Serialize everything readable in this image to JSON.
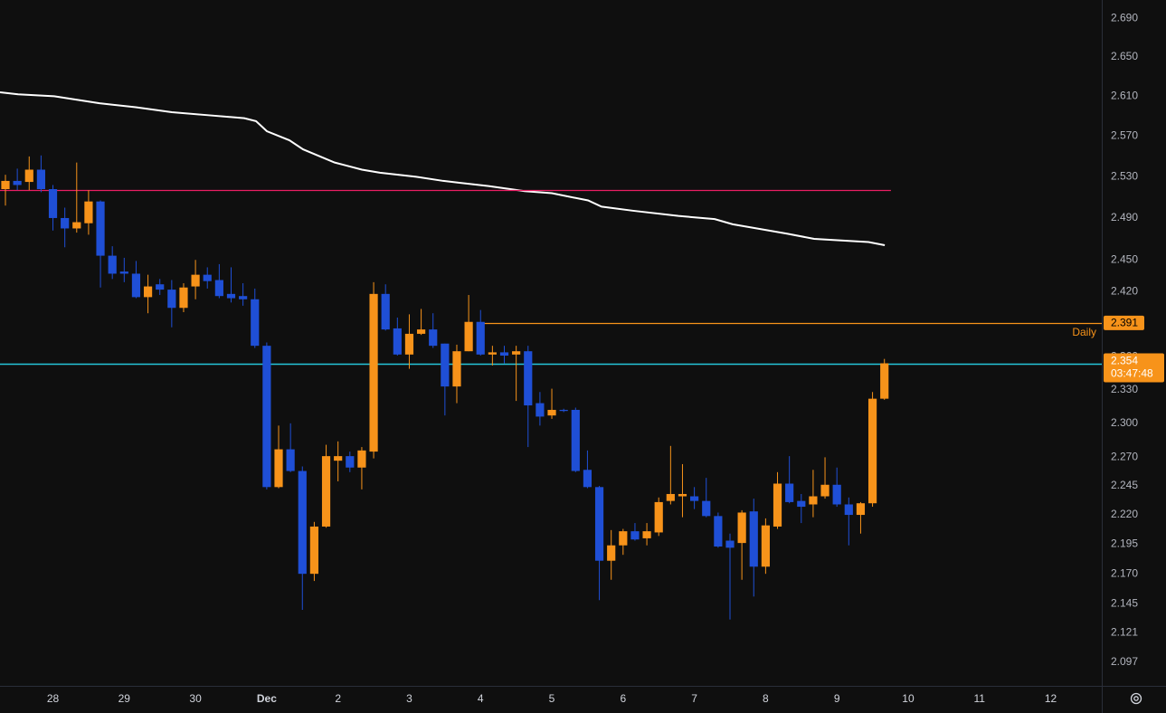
{
  "chart_data": {
    "type": "candlestick",
    "log_scale": true,
    "up_color": "#f7931a",
    "down_color": "#1f4fd6",
    "xlim": [
      -0.457,
      92.3
    ],
    "ylim": [
      2.078,
      2.709
    ],
    "xticks": [
      {
        "value": 4,
        "label": "28"
      },
      {
        "value": 10,
        "label": "29"
      },
      {
        "value": 16,
        "label": "30"
      },
      {
        "value": 22,
        "label": "Dec"
      },
      {
        "value": 28,
        "label": "2"
      },
      {
        "value": 34,
        "label": "3"
      },
      {
        "value": 40,
        "label": "4"
      },
      {
        "value": 46,
        "label": "5"
      },
      {
        "value": 52,
        "label": "6"
      },
      {
        "value": 58,
        "label": "7"
      },
      {
        "value": 64,
        "label": "8"
      },
      {
        "value": 70,
        "label": "9"
      },
      {
        "value": 76,
        "label": "10"
      },
      {
        "value": 82,
        "label": "11"
      },
      {
        "value": 88,
        "label": "12"
      }
    ],
    "yticks": [
      {
        "value": 2.69,
        "label": "2.690"
      },
      {
        "value": 2.65,
        "label": "2.650"
      },
      {
        "value": 2.61,
        "label": "2.610"
      },
      {
        "value": 2.57,
        "label": "2.570"
      },
      {
        "value": 2.53,
        "label": "2.530"
      },
      {
        "value": 2.49,
        "label": "2.490"
      },
      {
        "value": 2.45,
        "label": "2.450"
      },
      {
        "value": 2.42,
        "label": "2.420"
      },
      {
        "value": 2.36,
        "label": "2.360"
      },
      {
        "value": 2.33,
        "label": "2.330"
      },
      {
        "value": 2.3,
        "label": "2.300"
      },
      {
        "value": 2.27,
        "label": "2.270"
      },
      {
        "value": 2.245,
        "label": "2.245"
      },
      {
        "value": 2.22,
        "label": "2.220"
      },
      {
        "value": 2.195,
        "label": "2.195"
      },
      {
        "value": 2.17,
        "label": "2.170"
      },
      {
        "value": 2.145,
        "label": "2.145"
      },
      {
        "value": 2.121,
        "label": "2.121"
      },
      {
        "value": 2.097,
        "label": "2.097"
      }
    ],
    "open": [
      2.518,
      2.526,
      2.525,
      2.537,
      2.518,
      2.49,
      2.48,
      2.485,
      2.506,
      2.454,
      2.439,
      2.437,
      2.415,
      2.427,
      2.422,
      2.405,
      2.425,
      2.436,
      2.431,
      2.418,
      2.416,
      2.413,
      2.37,
      2.244,
      2.277,
      2.258,
      2.17,
      2.21,
      2.267,
      2.271,
      2.261,
      2.275,
      2.418,
      2.386,
      2.362,
      2.381,
      2.385,
      2.372,
      2.333,
      2.365,
      2.392,
      2.362,
      2.364,
      2.362,
      2.365,
      2.318,
      2.307,
      2.312,
      2.312,
      2.259,
      2.244,
      2.181,
      2.194,
      2.206,
      2.2,
      2.205,
      2.232,
      2.236,
      2.236,
      2.232,
      2.219,
      2.198,
      2.196,
      2.223,
      2.176,
      2.21,
      2.247,
      2.232,
      2.229,
      2.236,
      2.246,
      2.229,
      2.22,
      2.23,
      2.322
    ],
    "high": [
      2.532,
      2.538,
      2.55,
      2.551,
      2.522,
      2.5,
      2.544,
      2.517,
      2.507,
      2.463,
      2.452,
      2.449,
      2.436,
      2.432,
      2.431,
      2.428,
      2.45,
      2.443,
      2.446,
      2.443,
      2.428,
      2.423,
      2.373,
      2.298,
      2.3,
      2.262,
      2.214,
      2.281,
      2.284,
      2.275,
      2.279,
      2.429,
      2.427,
      2.396,
      2.399,
      2.404,
      2.4,
      2.372,
      2.371,
      2.417,
      2.403,
      2.37,
      2.37,
      2.37,
      2.37,
      2.328,
      2.331,
      2.313,
      2.314,
      2.276,
      2.245,
      2.207,
      2.208,
      2.213,
      2.213,
      2.235,
      2.28,
      2.264,
      2.244,
      2.252,
      2.222,
      2.204,
      2.224,
      2.234,
      2.217,
      2.257,
      2.271,
      2.238,
      2.259,
      2.27,
      2.261,
      2.235,
      2.231,
      2.328,
      2.358
    ],
    "low": [
      2.502,
      2.517,
      2.517,
      2.515,
      2.478,
      2.462,
      2.476,
      2.474,
      2.424,
      2.432,
      2.429,
      2.414,
      2.4,
      2.417,
      2.387,
      2.401,
      2.413,
      2.423,
      2.414,
      2.41,
      2.407,
      2.368,
      2.242,
      2.243,
      2.257,
      2.14,
      2.164,
      2.209,
      2.249,
      2.257,
      2.242,
      2.269,
      2.384,
      2.361,
      2.349,
      2.38,
      2.368,
      2.307,
      2.318,
      2.365,
      2.361,
      2.352,
      2.354,
      2.32,
      2.279,
      2.298,
      2.304,
      2.31,
      2.257,
      2.243,
      2.148,
      2.165,
      2.186,
      2.198,
      2.194,
      2.202,
      2.229,
      2.218,
      2.225,
      2.218,
      2.192,
      2.132,
      2.165,
      2.151,
      2.17,
      2.208,
      2.23,
      2.213,
      2.218,
      2.234,
      2.227,
      2.194,
      2.204,
      2.227,
      2.321
    ],
    "close": [
      2.526,
      2.522,
      2.537,
      2.518,
      2.49,
      2.48,
      2.486,
      2.506,
      2.454,
      2.437,
      2.437,
      2.415,
      2.425,
      2.422,
      2.405,
      2.424,
      2.436,
      2.43,
      2.416,
      2.414,
      2.413,
      2.37,
      2.244,
      2.277,
      2.258,
      2.17,
      2.21,
      2.271,
      2.271,
      2.261,
      2.276,
      2.418,
      2.385,
      2.362,
      2.381,
      2.385,
      2.37,
      2.333,
      2.365,
      2.392,
      2.362,
      2.364,
      2.361,
      2.365,
      2.316,
      2.306,
      2.312,
      2.311,
      2.258,
      2.244,
      2.181,
      2.194,
      2.206,
      2.199,
      2.206,
      2.231,
      2.238,
      2.238,
      2.232,
      2.219,
      2.193,
      2.192,
      2.222,
      2.176,
      2.211,
      2.247,
      2.231,
      2.227,
      2.236,
      2.246,
      2.229,
      2.22,
      2.23,
      2.322,
      2.354
    ],
    "moving_average": {
      "color": "#ffffff",
      "x": [
        -0.457,
        1.07,
        4.11,
        7.92,
        10.97,
        14.01,
        17.06,
        20.11,
        21.1,
        22.01,
        23.91,
        25.06,
        27.72,
        30.01,
        31.53,
        34.58,
        36.86,
        40.67,
        43.72,
        46.0,
        49.05,
        50.19,
        52.86,
        56.66,
        59.71,
        61.23,
        65.8,
        68.09,
        72.66,
        74.03
      ],
      "values": [
        2.614,
        2.612,
        2.61,
        2.603,
        2.599,
        2.594,
        2.591,
        2.588,
        2.585,
        2.575,
        2.566,
        2.557,
        2.544,
        2.537,
        2.534,
        2.53,
        2.526,
        2.521,
        2.516,
        2.514,
        2.507,
        2.501,
        2.497,
        2.492,
        2.489,
        2.484,
        2.475,
        2.47,
        2.467,
        2.464
      ]
    },
    "levels": [
      {
        "value": 2.517,
        "color": "#e91e63"
      },
      {
        "value": 2.391,
        "color": "#f7931a",
        "start": 40,
        "name": "Daily",
        "tag": true
      },
      {
        "value": 2.354,
        "color": "#26c6da",
        "tag": true,
        "countdown": "03:47:48"
      }
    ]
  }
}
